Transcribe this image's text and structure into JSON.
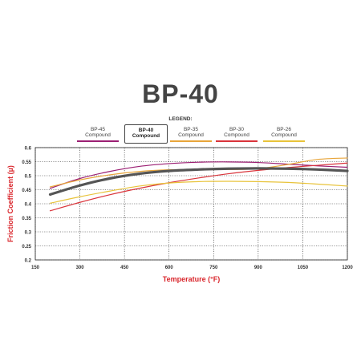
{
  "title": "BP-40",
  "legend_heading": "LEGEND:",
  "legend": [
    {
      "line1": "BP-45",
      "line2": "Compound",
      "color": "#9b1f73",
      "selected": false
    },
    {
      "line1": "BP-40",
      "line2": "Compound",
      "color": "#555555",
      "selected": true
    },
    {
      "line1": "BP-35",
      "line2": "Compound",
      "color": "#e8a53a",
      "selected": false
    },
    {
      "line1": "BP-30",
      "line2": "Compound",
      "color": "#d9343b",
      "selected": false
    },
    {
      "line1": "BP-26",
      "line2": "Compound",
      "color": "#e8c33a",
      "selected": false
    }
  ],
  "chart_data": {
    "type": "line",
    "title": "BP-40",
    "xlabel": "Temperature (°F)",
    "ylabel": "Friction Coefficient (µ)",
    "xlim": [
      150,
      1200
    ],
    "ylim": [
      0.2,
      0.6
    ],
    "x_ticks": [
      "150",
      "300",
      "450",
      "600",
      "750",
      "900",
      "1050",
      "1200"
    ],
    "y_ticks": [
      "0.2",
      "0.25",
      "0.3",
      "0.35",
      "0.4",
      "0.45",
      "0.5",
      "0.55",
      "0.6"
    ],
    "grid": true,
    "label_color": "#d9252b",
    "series": [
      {
        "name": "BP-45 Compound",
        "color": "#9b1f73",
        "x": [
          200,
          300,
          400,
          500,
          600,
          700,
          800,
          900,
          1000,
          1100,
          1200
        ],
        "y": [
          0.455,
          0.49,
          0.515,
          0.533,
          0.543,
          0.548,
          0.549,
          0.547,
          0.541,
          0.535,
          0.53
        ]
      },
      {
        "name": "BP-40 Compound",
        "color": "#555555",
        "x": [
          200,
          300,
          400,
          500,
          600,
          700,
          800,
          900,
          1000,
          1100,
          1200
        ],
        "y": [
          0.433,
          0.465,
          0.49,
          0.507,
          0.517,
          0.522,
          0.525,
          0.526,
          0.525,
          0.522,
          0.517
        ]
      },
      {
        "name": "BP-35 Compound",
        "color": "#e8a53a",
        "x": [
          200,
          300,
          400,
          500,
          600,
          700,
          800,
          900,
          1000,
          1100,
          1200
        ],
        "y": [
          0.46,
          0.485,
          0.503,
          0.515,
          0.521,
          0.522,
          0.522,
          0.525,
          0.54,
          0.558,
          0.563
        ]
      },
      {
        "name": "BP-30 Compound",
        "color": "#d9343b",
        "x": [
          200,
          300,
          400,
          500,
          600,
          700,
          800,
          900,
          1000,
          1100,
          1200
        ],
        "y": [
          0.375,
          0.405,
          0.432,
          0.455,
          0.475,
          0.492,
          0.507,
          0.519,
          0.529,
          0.537,
          0.545
        ]
      },
      {
        "name": "BP-26 Compound",
        "color": "#e8c33a",
        "x": [
          200,
          300,
          400,
          500,
          600,
          700,
          800,
          900,
          1000,
          1100,
          1200
        ],
        "y": [
          0.402,
          0.425,
          0.445,
          0.463,
          0.474,
          0.479,
          0.48,
          0.479,
          0.476,
          0.47,
          0.463
        ]
      }
    ]
  }
}
